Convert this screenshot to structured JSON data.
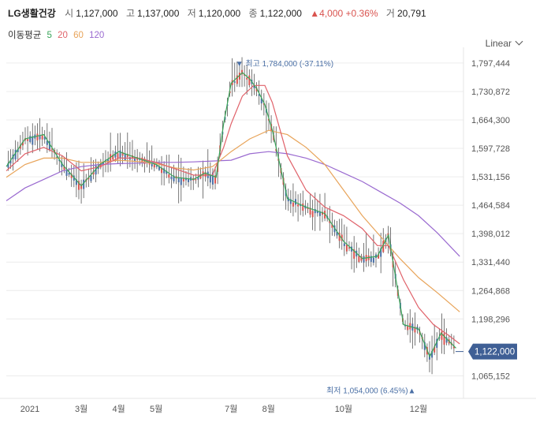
{
  "header": {
    "name": "LG생활건강",
    "open_label": "시",
    "open": "1,127,000",
    "high_label": "고",
    "high": "1,137,000",
    "low_label": "저",
    "low": "1,120,000",
    "close_label": "종",
    "close": "1,122,000",
    "change": "▲4,000 +0.36%",
    "volume_label": "거",
    "volume": "20,791"
  },
  "ma_legend": {
    "label": "이동평균",
    "periods": [
      "5",
      "20",
      "60",
      "120"
    ],
    "colors": [
      "#3aa55a",
      "#e0626a",
      "#e8a45a",
      "#9a6ad0"
    ]
  },
  "scale_label": "Linear",
  "chart_data": {
    "type": "line",
    "title": "",
    "y_ticks": [
      "1,797,444",
      "1,730,872",
      "1,664,300",
      "1,597,728",
      "1,531,156",
      "1,464,584",
      "1,398,012",
      "1,331,440",
      "1,264,868",
      "1,198,296",
      "1,065,152"
    ],
    "y_tick_values": [
      1797444,
      1730872,
      1664300,
      1597728,
      1531156,
      1464584,
      1398012,
      1331440,
      1264868,
      1198296,
      1065152
    ],
    "ylim": [
      1040000,
      1825000
    ],
    "x_labels": [
      "2021",
      "3월",
      "4월",
      "5월",
      "7월",
      "8월",
      "10월",
      "12월"
    ],
    "x_label_months": [
      0,
      2,
      3,
      4,
      6,
      7,
      9,
      11
    ],
    "xlim_months": [
      0,
      12.2
    ],
    "series": [
      {
        "name": "5",
        "color": "#3aa55a",
        "x": [
          0,
          0.5,
          1,
          1.5,
          2,
          2.5,
          3,
          3.5,
          4,
          4.5,
          5,
          5.3,
          5.6,
          5.8,
          6,
          6.3,
          6.5,
          6.7,
          6.9,
          7.1,
          7.5,
          8,
          8.5,
          9,
          9.5,
          9.9,
          10.2,
          10.6,
          11,
          11.3,
          11.6,
          12
        ],
        "y": [
          1555000,
          1620000,
          1630000,
          1560000,
          1510000,
          1560000,
          1590000,
          1575000,
          1560000,
          1530000,
          1525000,
          1540000,
          1530000,
          1655000,
          1750000,
          1775000,
          1760000,
          1735000,
          1700000,
          1640000,
          1480000,
          1460000,
          1445000,
          1380000,
          1340000,
          1345000,
          1395000,
          1185000,
          1175000,
          1110000,
          1165000,
          1130000
        ]
      },
      {
        "name": "20",
        "color": "#e0626a",
        "x": [
          0,
          0.5,
          1,
          1.5,
          2,
          2.5,
          3,
          3.5,
          4,
          4.5,
          5,
          5.5,
          5.8,
          6,
          6.3,
          6.6,
          6.9,
          7.1,
          7.5,
          8,
          8.5,
          9,
          9.5,
          9.9,
          10.2,
          10.6,
          11,
          11.4,
          11.8,
          12.1
        ],
        "y": [
          1545000,
          1585000,
          1600000,
          1580000,
          1545000,
          1555000,
          1575000,
          1575000,
          1565000,
          1550000,
          1535000,
          1535000,
          1600000,
          1655000,
          1720000,
          1745000,
          1745000,
          1705000,
          1580000,
          1500000,
          1460000,
          1440000,
          1410000,
          1370000,
          1370000,
          1290000,
          1225000,
          1185000,
          1160000,
          1140000
        ]
      },
      {
        "name": "60",
        "color": "#e8a45a",
        "x": [
          0,
          0.5,
          1,
          1.5,
          2,
          2.5,
          3,
          3.5,
          4,
          4.5,
          5,
          5.5,
          6,
          6.5,
          7,
          7.5,
          8,
          8.5,
          9,
          9.5,
          10,
          10.5,
          11,
          11.5,
          12.1
        ],
        "y": [
          1530000,
          1560000,
          1575000,
          1575000,
          1565000,
          1565000,
          1570000,
          1567000,
          1562000,
          1552000,
          1547000,
          1555000,
          1590000,
          1620000,
          1640000,
          1630000,
          1600000,
          1560000,
          1500000,
          1440000,
          1390000,
          1340000,
          1295000,
          1260000,
          1215000
        ]
      },
      {
        "name": "120",
        "color": "#9a6ad0",
        "x": [
          0,
          0.5,
          1,
          1.5,
          2,
          2.5,
          3,
          3.5,
          4,
          4.5,
          5,
          5.5,
          6,
          6.5,
          7,
          7.5,
          8,
          8.5,
          9,
          9.5,
          10,
          10.5,
          11,
          11.5,
          12.1
        ],
        "y": [
          1475000,
          1505000,
          1525000,
          1545000,
          1555000,
          1560000,
          1562000,
          1563000,
          1565000,
          1565000,
          1566000,
          1568000,
          1570000,
          1585000,
          1590000,
          1585000,
          1575000,
          1560000,
          1540000,
          1520000,
          1495000,
          1470000,
          1440000,
          1400000,
          1345000
        ]
      }
    ],
    "max_annotation": {
      "text": "최고 1,784,000 (-37.11%)",
      "month": 6.2,
      "value": 1784000
    },
    "min_annotation": {
      "text": "최저 1,054,000 (6.45%)",
      "month": 10.8,
      "value": 1054000
    },
    "current_value": {
      "text": "1,122,000",
      "value": 1122000
    }
  }
}
